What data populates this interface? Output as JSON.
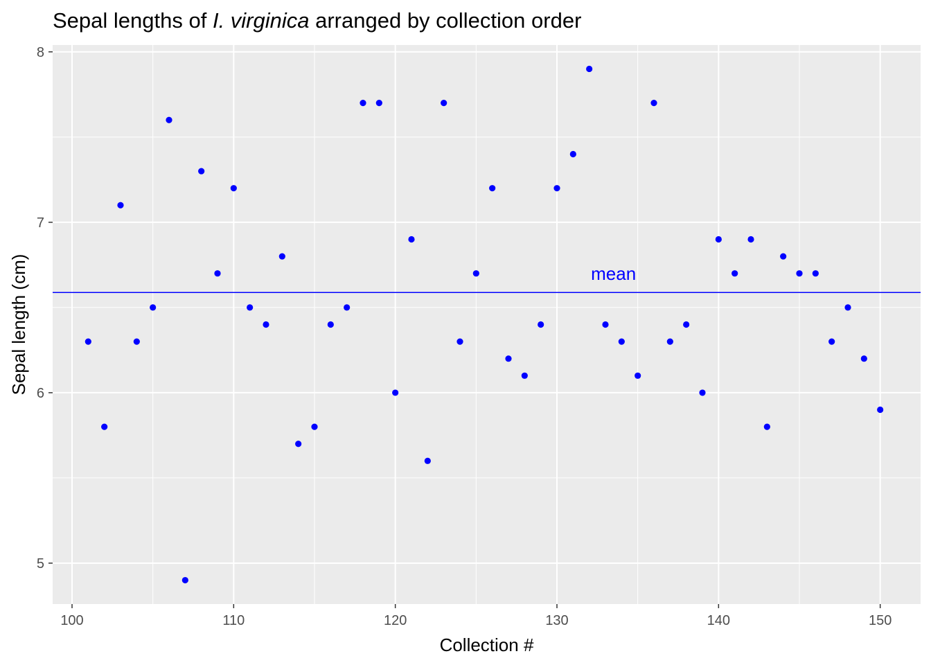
{
  "chart_data": {
    "type": "scatter",
    "title": {
      "prefix": "Sepal lengths of ",
      "italic": "I. virginica",
      "suffix": " arranged by collection order"
    },
    "xlabel": "Collection #",
    "ylabel": "Sepal length (cm)",
    "xlim": [
      98.8,
      152.5
    ],
    "ylim": [
      4.76,
      8.04
    ],
    "x_ticks": [
      100,
      110,
      120,
      130,
      140,
      150
    ],
    "y_ticks": [
      5,
      6,
      7,
      8
    ],
    "x_tick_labels": [
      "100",
      "110",
      "120",
      "130",
      "140",
      "150"
    ],
    "y_tick_labels": [
      "5",
      "6",
      "7",
      "8"
    ],
    "grid": true,
    "point_color": "#0000ff",
    "panel_background": "#ebebeb",
    "grid_color": "#ffffff",
    "series": [
      {
        "x": [
          101,
          102,
          103,
          104,
          105,
          106,
          107,
          108,
          109,
          110,
          111,
          112,
          113,
          114,
          115,
          116,
          117,
          118,
          119,
          120,
          121,
          122,
          123,
          124,
          125,
          126,
          127,
          128,
          129,
          130,
          131,
          132,
          133,
          134,
          135,
          136,
          137,
          138,
          139,
          140,
          141,
          142,
          143,
          144,
          145,
          146,
          147,
          148,
          149,
          150
        ],
        "y": [
          6.3,
          5.8,
          7.1,
          6.3,
          6.5,
          7.6,
          4.9,
          7.3,
          6.7,
          7.2,
          6.5,
          6.4,
          6.8,
          5.7,
          5.8,
          6.4,
          6.5,
          7.7,
          7.7,
          6.0,
          6.9,
          5.6,
          7.7,
          6.3,
          6.7,
          7.2,
          6.2,
          6.1,
          6.4,
          7.2,
          7.4,
          7.9,
          6.4,
          6.3,
          6.1,
          7.7,
          6.3,
          6.4,
          6.0,
          6.9,
          6.7,
          6.9,
          5.8,
          6.8,
          6.7,
          6.7,
          6.3,
          6.5,
          6.2,
          5.9
        ]
      }
    ],
    "mean_line": {
      "y": 6.588,
      "label": "mean",
      "label_x": 133.5,
      "color": "#0000ff"
    }
  }
}
